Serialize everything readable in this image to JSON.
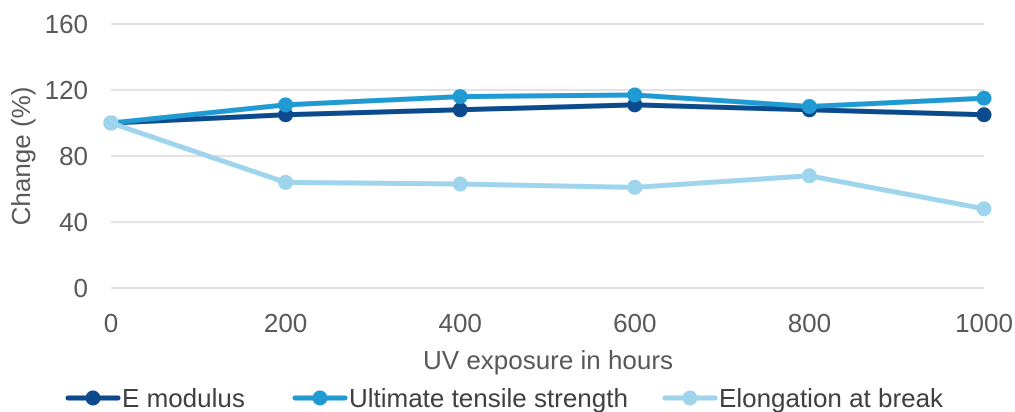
{
  "chart_data": {
    "type": "line",
    "title": "",
    "xlabel": "UV exposure in hours",
    "ylabel": "Change (%)",
    "x": [
      0,
      200,
      400,
      600,
      800,
      1000
    ],
    "xlim": [
      0,
      1000
    ],
    "ylim": [
      0,
      160
    ],
    "yticks": [
      0,
      40,
      80,
      120,
      160
    ],
    "xticks": [
      0,
      200,
      400,
      600,
      800,
      1000
    ],
    "grid": "horizontal",
    "legend_position": "bottom",
    "series": [
      {
        "name": "E modulus",
        "color": "#0b4a8c",
        "values": [
          100,
          105,
          108,
          111,
          108,
          105
        ]
      },
      {
        "name": "Ultimate tensile strength",
        "color": "#1f9ad3",
        "values": [
          100,
          111,
          116,
          117,
          110,
          115
        ]
      },
      {
        "name": "Elongation at break",
        "color": "#9fd5ec",
        "values": [
          100,
          64,
          63,
          61,
          68,
          48
        ]
      }
    ]
  }
}
